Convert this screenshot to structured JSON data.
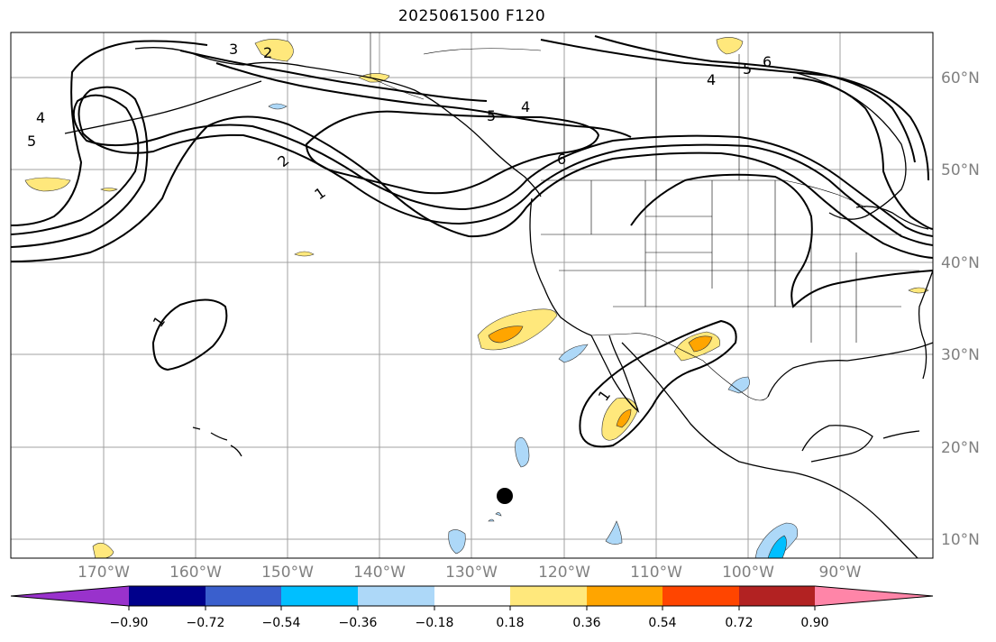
{
  "title": "2025061500 F120",
  "longitude_labels": [
    "170°W",
    "160°W",
    "150°W",
    "140°W",
    "130°W",
    "120°W",
    "110°W",
    "100°W",
    "90°W"
  ],
  "latitude_labels": [
    "60°N",
    "50°N",
    "40°N",
    "30°N",
    "20°N",
    "10°N"
  ],
  "contour_labels": [
    "1",
    "2",
    "3",
    "4",
    "5",
    "6"
  ],
  "colorbar": {
    "ticks": [
      "−0.90",
      "−0.72",
      "−0.54",
      "−0.36",
      "−0.18",
      "0.18",
      "0.36",
      "0.54",
      "0.72",
      "0.90"
    ],
    "colors": [
      "#9932cc",
      "#00008b",
      "#3a5fcd",
      "#00bfff",
      "#add8f8",
      "#ffffff",
      "#ffe87c",
      "#ffa500",
      "#ff4500",
      "#b22222",
      "#ff85a8"
    ]
  },
  "styles": {
    "grid_color": "#a0a0a0",
    "contour_color": "#000000",
    "coast_color": "#000000"
  }
}
